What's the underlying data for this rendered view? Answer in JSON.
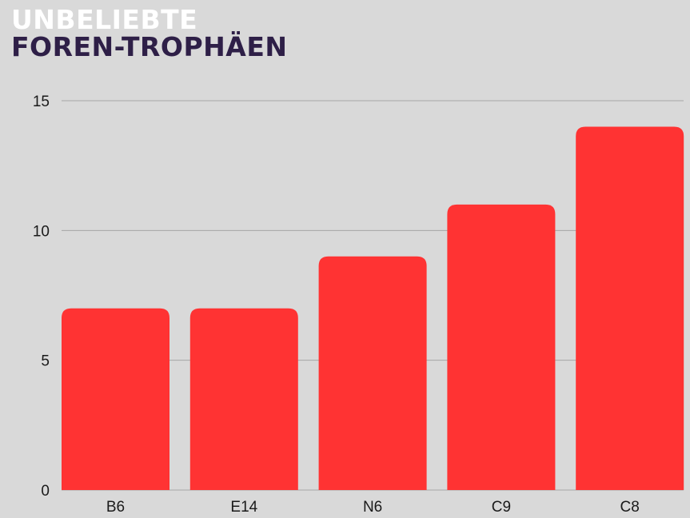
{
  "title": {
    "line1": "UNBELIEBTE",
    "line2": "FOREN-TROPHÄEN"
  },
  "colors": {
    "background": "#d9d9d9",
    "bar": "#ff3333",
    "gridline": "#a6a6a6",
    "title_line1": "#ffffff",
    "title_line2": "#2e1f47",
    "text": "#1a1a1a"
  },
  "chart_data": {
    "type": "bar",
    "categories": [
      "B6",
      "E14",
      "N6",
      "C9",
      "C8"
    ],
    "values": [
      7,
      7,
      9,
      11,
      14
    ],
    "title": "UNBELIEBTE FOREN-TROPHÄEN",
    "xlabel": "",
    "ylabel": "",
    "ylim": [
      0,
      15
    ],
    "yticks": [
      0,
      5,
      10,
      15
    ],
    "grid": true,
    "legend": "none"
  }
}
